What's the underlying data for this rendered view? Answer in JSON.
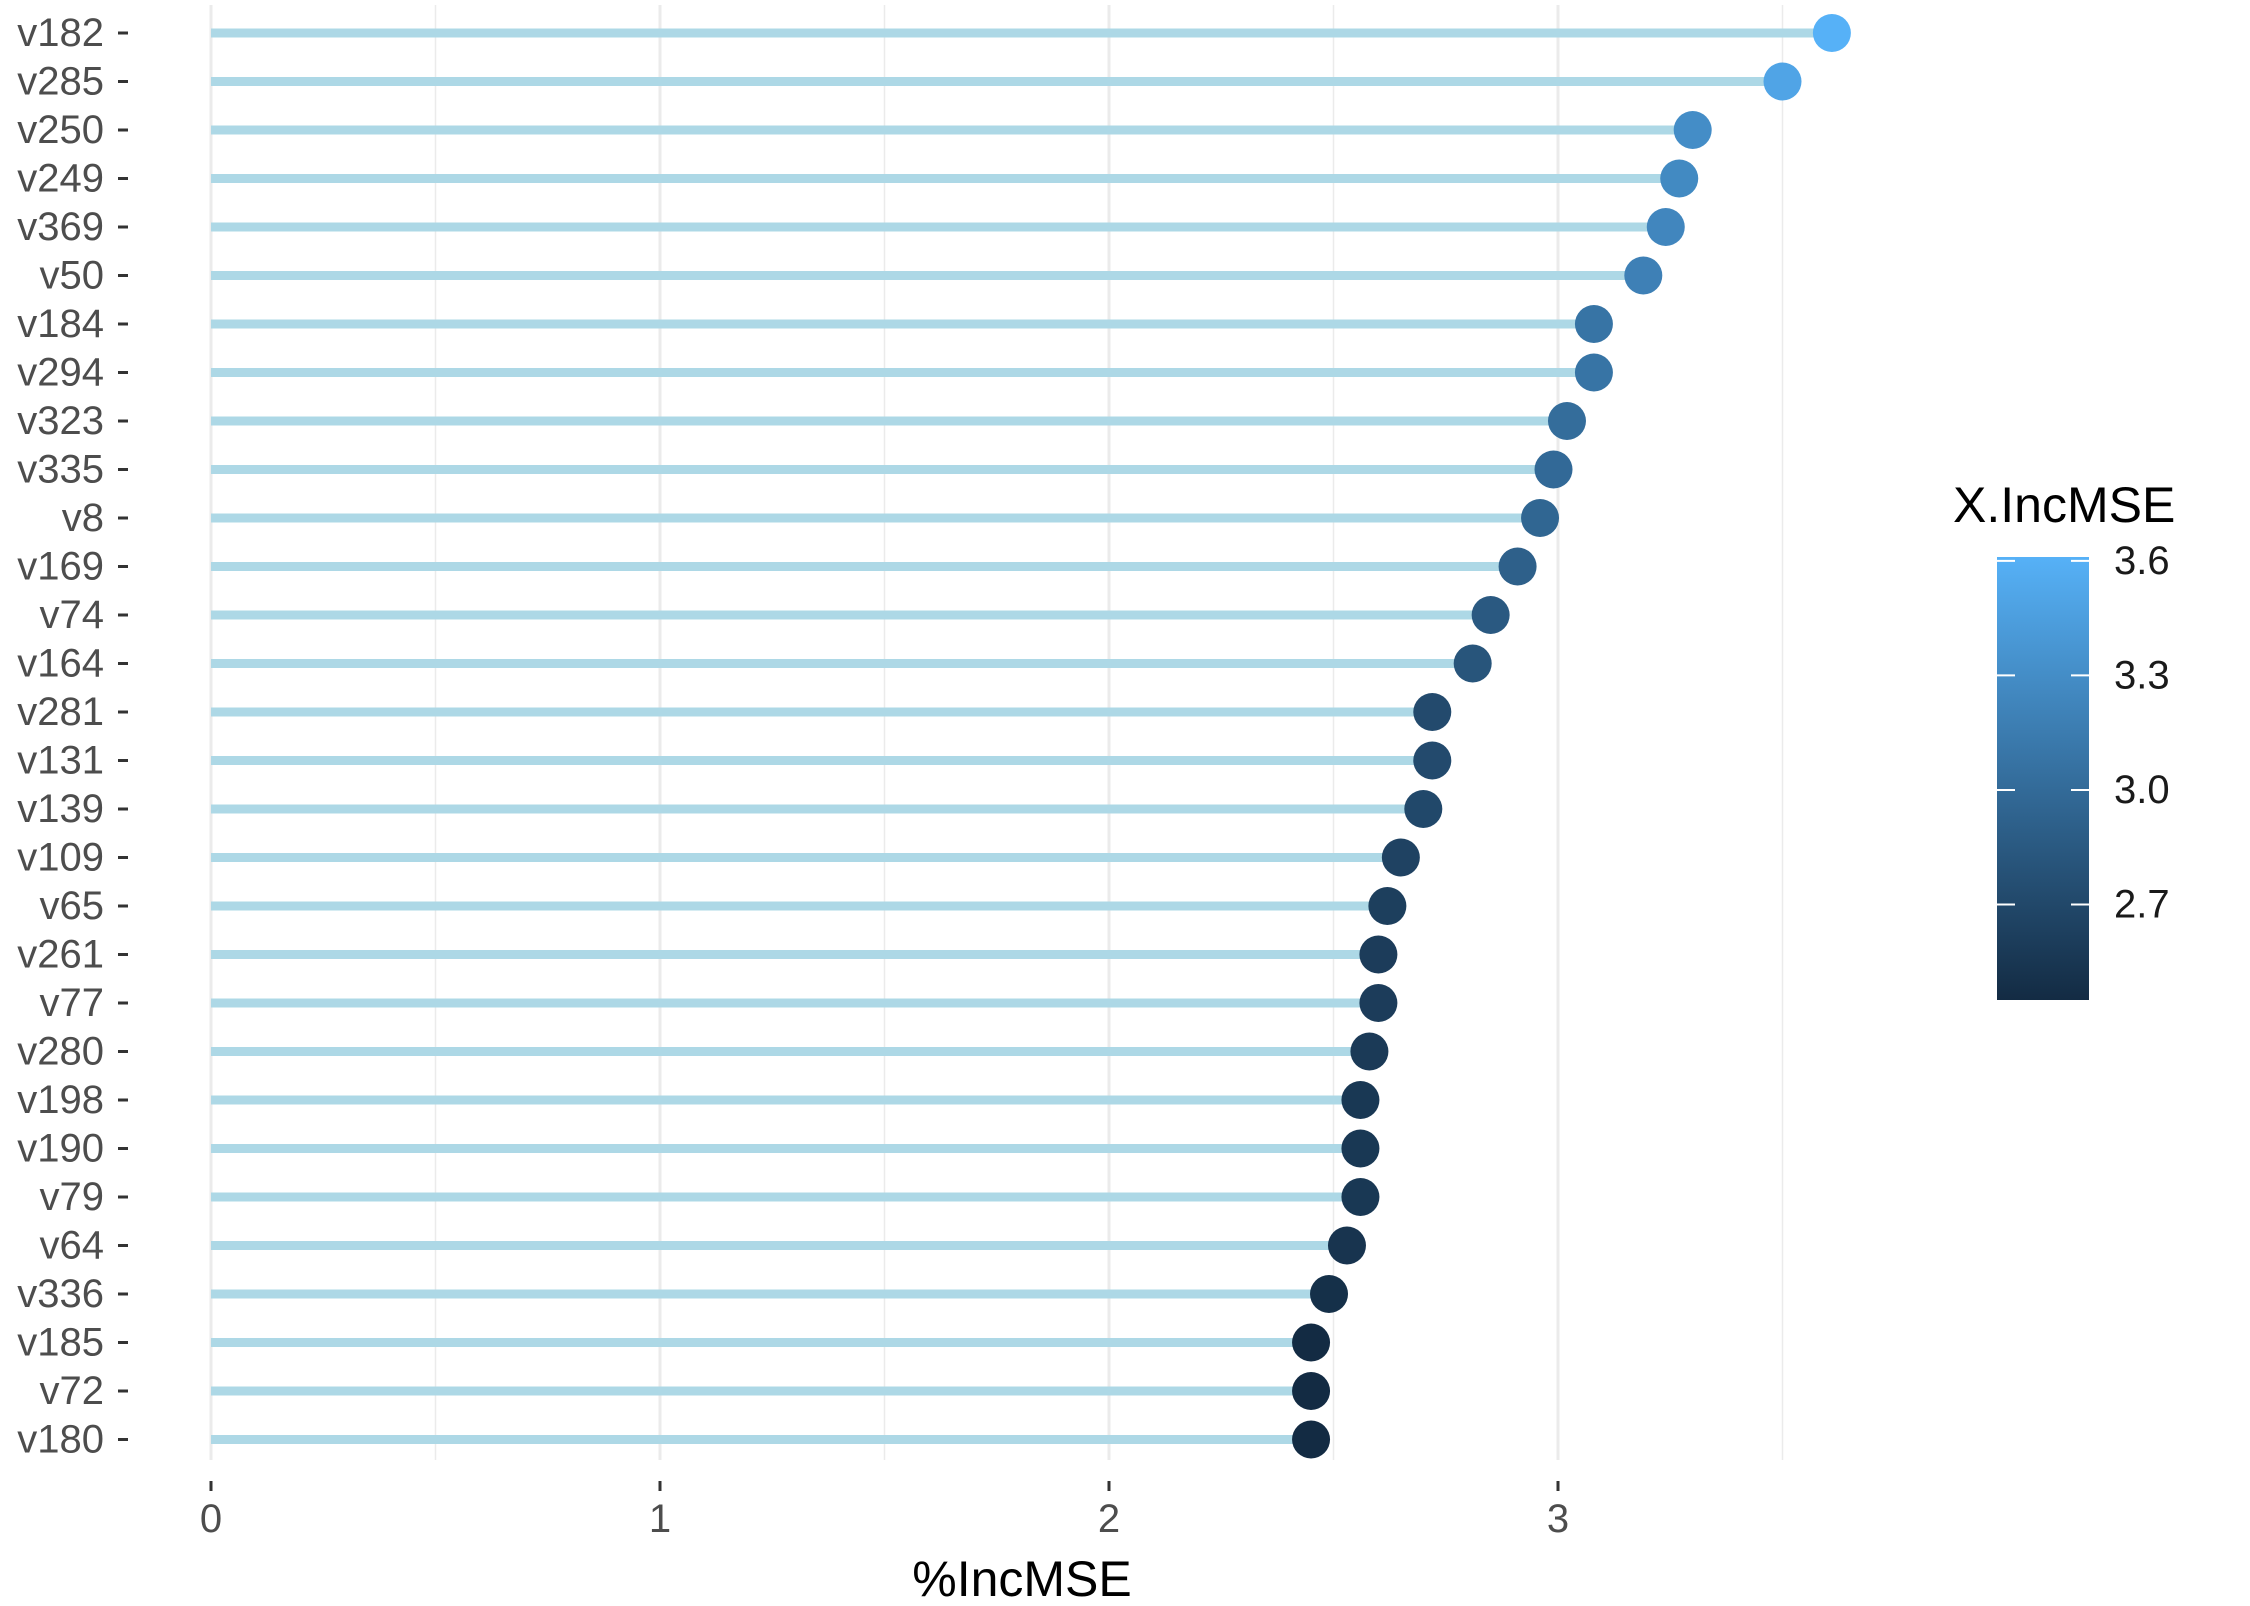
{
  "chart_data": {
    "type": "lollipop",
    "xlabel": "%IncMSE",
    "ylabel": "",
    "xlim": [
      0,
      3.65
    ],
    "xticks": [
      0,
      1,
      2,
      3
    ],
    "xtick_labels": [
      "0",
      "1",
      "2",
      "3"
    ],
    "grid": true,
    "categories": [
      "v182",
      "v285",
      "v250",
      "v249",
      "v369",
      "v50",
      "v184",
      "v294",
      "v323",
      "v335",
      "v8",
      "v169",
      "v74",
      "v164",
      "v281",
      "v131",
      "v139",
      "v109",
      "v65",
      "v261",
      "v77",
      "v280",
      "v198",
      "v190",
      "v79",
      "v64",
      "v336",
      "v185",
      "v72",
      "v180"
    ],
    "values": [
      3.61,
      3.5,
      3.3,
      3.27,
      3.24,
      3.19,
      3.08,
      3.08,
      3.02,
      2.99,
      2.96,
      2.91,
      2.85,
      2.81,
      2.72,
      2.72,
      2.7,
      2.65,
      2.62,
      2.6,
      2.6,
      2.58,
      2.56,
      2.56,
      2.56,
      2.53,
      2.49,
      2.45,
      2.45,
      2.45
    ],
    "segment_color": "#add8e6",
    "legend": {
      "title": "X.IncMSE",
      "position": "right",
      "ticks": [
        3.6,
        3.3,
        3.0,
        2.7
      ],
      "tick_labels": [
        "3.6",
        "3.3",
        "3.0",
        "2.7"
      ],
      "range": [
        2.45,
        3.61
      ],
      "low_color": "#132b43",
      "high_color": "#56b1f7"
    }
  }
}
